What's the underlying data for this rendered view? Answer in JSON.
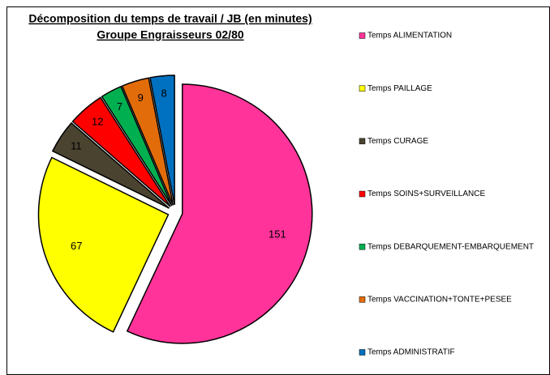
{
  "chart_data": {
    "type": "pie",
    "title": "Décomposition du temps de travail / JB (en minutes)",
    "subtitle": "Groupe Engraisseurs 02/80",
    "categories": [
      "Temps ALIMENTATION",
      "Temps PAILLAGE",
      "Temps CURAGE",
      "Temps SOINS+SURVEILLANCE",
      "Temps DEBARQUEMENT-EMBARQUEMENT",
      "Temps VACCINATION+TONTE+PESEE",
      "Temps ADMINISTRATIF"
    ],
    "values": [
      151,
      67,
      11,
      12,
      7,
      9,
      8
    ],
    "colors": [
      "#ff3399",
      "#ffff00",
      "#4a4330",
      "#ff0000",
      "#00b050",
      "#e36c0a",
      "#0070c0"
    ],
    "legend": "right"
  }
}
